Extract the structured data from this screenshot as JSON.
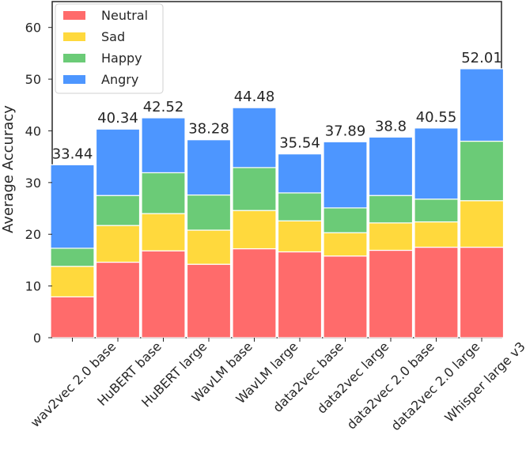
{
  "chart_data": {
    "type": "bar",
    "stacked": true,
    "title": "",
    "xlabel": "",
    "ylabel": "Average Accuracy",
    "ylim": [
      0,
      65
    ],
    "yticks": [
      0,
      10,
      20,
      30,
      40,
      50,
      60
    ],
    "categories": [
      "wav2vec 2.0 base",
      "HuBERT base",
      "HuBERT large",
      "WavLM base",
      "WavLM large",
      "data2vec base",
      "data2vec large",
      "data2vec 2.0 base",
      "data2vec 2.0 large",
      "Whisper large v3"
    ],
    "series": [
      {
        "name": "Neutral",
        "color": "#ff6b6b",
        "values": [
          7.9,
          14.6,
          16.8,
          14.2,
          17.2,
          16.6,
          15.8,
          16.9,
          17.5,
          17.5
        ]
      },
      {
        "name": "Sad",
        "color": "#ffd93d",
        "values": [
          5.9,
          7.1,
          7.2,
          6.6,
          7.4,
          6.0,
          4.5,
          5.3,
          4.9,
          9.0
        ]
      },
      {
        "name": "Happy",
        "color": "#6bcb77",
        "values": [
          3.5,
          5.8,
          7.9,
          6.8,
          8.3,
          5.4,
          4.8,
          5.3,
          4.4,
          11.5
        ]
      },
      {
        "name": "Angry",
        "color": "#4d96ff",
        "values": [
          16.14,
          12.84,
          10.62,
          10.68,
          11.58,
          7.54,
          12.79,
          11.3,
          13.75,
          14.01
        ]
      }
    ],
    "totals": [
      "33.44",
      "40.34",
      "42.52",
      "38.28",
      "44.48",
      "35.54",
      "37.89",
      "38.8",
      "40.55",
      "52.01"
    ],
    "legend_position": "top-left",
    "grid": false
  }
}
